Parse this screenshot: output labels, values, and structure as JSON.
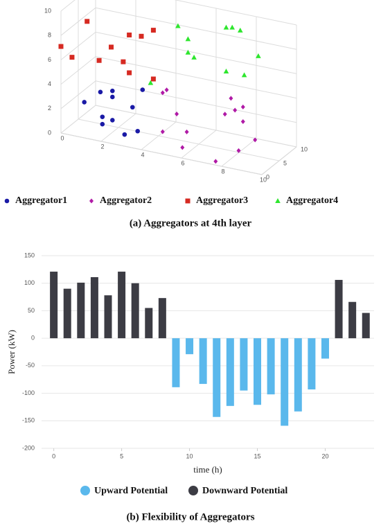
{
  "chart_data": [
    {
      "type": "scatter3d",
      "title": "(a) Aggregators at 4th layer",
      "xlim": [
        0,
        10
      ],
      "ylim": [
        0,
        10
      ],
      "zlim": [
        0,
        10
      ],
      "xticks": [
        0,
        2,
        4,
        6,
        8,
        10
      ],
      "yticks": [
        0,
        5,
        10
      ],
      "zticks": [
        0,
        2,
        4,
        6,
        8,
        10
      ],
      "grid": true,
      "series": [
        {
          "name": "Aggregator1",
          "color": "#1a1aa6",
          "marker": "circle",
          "x": [
            0.3,
            1.1,
            1.7,
            1.7,
            1.2,
            1.2,
            1.7,
            2.7,
            3.2,
            2.65,
            3.3
          ],
          "y": [
            5,
            5,
            5,
            5,
            5,
            5,
            5,
            5,
            5,
            3,
            3
          ],
          "z": [
            1.5,
            2.6,
            2.9,
            2.4,
            0.6,
            0,
            0.5,
            1.9,
            3.5,
            0.1,
            0.6
          ]
        },
        {
          "name": "Aggregator2",
          "color": "#b01aa6",
          "marker": "diamond",
          "x": [
            4.2,
            4.4,
            4.9,
            4.2,
            5.4,
            5.7,
            7.7,
            7.6,
            7.3,
            7.8,
            8.2,
            8.2,
            8.5,
            8.8
          ],
          "y": [
            5,
            5,
            5,
            5,
            5,
            2,
            0,
            5,
            5,
            5,
            5,
            5,
            2,
            5
          ],
          "z": [
            3.6,
            3.9,
            2.1,
            0.4,
            0.8,
            0.3,
            0.3,
            4.3,
            2.9,
            3.4,
            3.8,
            2.6,
            1.0,
            1.3
          ]
        },
        {
          "name": "Aggregator3",
          "color": "#d62a22",
          "marker": "square",
          "x": [
            0,
            0.55,
            1.3,
            1.9,
            2.5,
            3.1,
            3.4,
            3.4,
            4.0,
            4.6,
            4.6
          ],
          "y": [
            0,
            0,
            0,
            0,
            0,
            0,
            0,
            0,
            0,
            0,
            0
          ],
          "z": [
            7.1,
            6.4,
            9.6,
            6.6,
            7.9,
            6.9,
            9.2,
            6.1,
            9.3,
            10,
            6.0
          ]
        },
        {
          "name": "Aggregator4",
          "color": "#2ee62e",
          "marker": "triangle",
          "x": [
            4.1,
            4.6,
            4.6,
            4.9,
            3.6,
            6.5,
            6.5,
            6.8,
            7.2,
            7.4,
            8.1
          ],
          "y": [
            10,
            10,
            10,
            10,
            5,
            10,
            10,
            10,
            10,
            10,
            10
          ],
          "z": [
            7.9,
            7.0,
            5.9,
            5.6,
            4.2,
            5.0,
            8.6,
            8.7,
            8.6,
            5.0,
            6.8
          ]
        }
      ]
    },
    {
      "type": "bar",
      "title": "(b) Flexibility of Aggregators",
      "x_label": "time (h)",
      "y_label": "Power (kW)",
      "x": [
        0,
        1,
        2,
        3,
        4,
        5,
        6,
        7,
        8,
        9,
        10,
        11,
        12,
        13,
        14,
        15,
        16,
        17,
        18,
        19,
        20,
        21,
        22,
        23
      ],
      "xlim": [
        -0.9,
        23.6
      ],
      "xticks": [
        0,
        5,
        10,
        15,
        20
      ],
      "ylim": [
        -200,
        150
      ],
      "yticks": [
        150,
        100,
        50,
        0,
        -50,
        -100,
        -150,
        -200
      ],
      "grid": true,
      "series": [
        {
          "name": "Upward Potential",
          "color": "#5ab8ec",
          "values": [
            null,
            null,
            null,
            null,
            null,
            null,
            null,
            null,
            null,
            -89,
            -29,
            -83,
            -143,
            -123,
            -95,
            -121,
            -102,
            -159,
            -133,
            -93,
            -37,
            null,
            null,
            null
          ]
        },
        {
          "name": "Downward Potential",
          "color": "#3c3c44",
          "values": [
            121,
            90,
            101,
            111,
            78,
            121,
            100,
            55,
            73,
            null,
            null,
            null,
            null,
            null,
            null,
            null,
            null,
            null,
            null,
            null,
            null,
            106,
            66,
            46
          ]
        }
      ]
    }
  ]
}
